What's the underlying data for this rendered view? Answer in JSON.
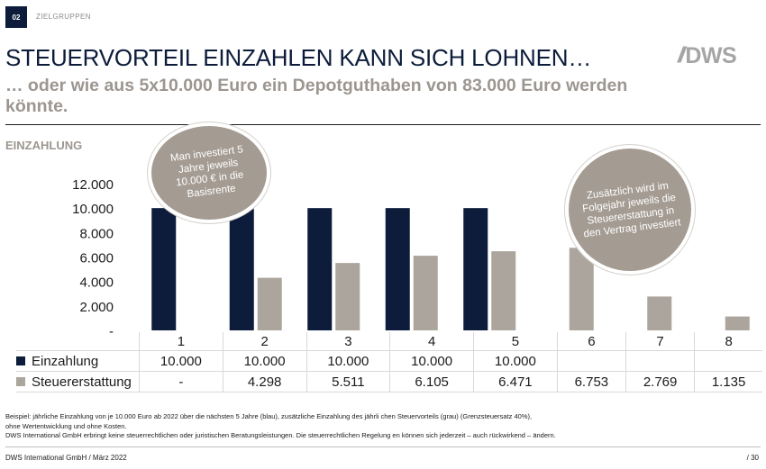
{
  "header": {
    "section_number": "02",
    "section_label": "ZIELGRUPPEN",
    "title": "STEUERVORTEIL EINZAHLEN KANN SICH LOHNEN…",
    "subtitle": "… oder wie aus 5x10.000 Euro ein Depotguthaben von 83.000 Euro werden könnte.",
    "logo_slashes": "//",
    "logo_text": "DWS"
  },
  "section_heading": "EINZAHLUNG",
  "callouts": {
    "left": "Man investiert 5 Jahre jeweils 10.000 € in die Basisrente",
    "right": "Zusätzlich wird im Folgejahr jeweils die Steuererstattung in den Vertrag investiert"
  },
  "colors": {
    "einzahlung": "#0c1c3a",
    "steuer": "#aca59e"
  },
  "chart_data": {
    "type": "bar",
    "title": "EINZAHLUNG",
    "categories": [
      "1",
      "2",
      "3",
      "4",
      "5",
      "6",
      "7",
      "8"
    ],
    "ylim": [
      0,
      12000
    ],
    "yticks": [
      0,
      2000,
      4000,
      6000,
      8000,
      10000,
      12000
    ],
    "ytick_labels": [
      "-",
      "2.000",
      "4.000",
      "6.000",
      "8.000",
      "10.000",
      "12.000"
    ],
    "series": [
      {
        "name": "Einzahlung",
        "color": "#0c1c3a",
        "values": [
          10000,
          10000,
          10000,
          10000,
          10000,
          null,
          null,
          null
        ]
      },
      {
        "name": "Steuererstattung",
        "color": "#aca59e",
        "values": [
          null,
          4298,
          5511,
          6105,
          6471,
          6753,
          2769,
          1135
        ]
      }
    ],
    "xlabel": "",
    "ylabel": "",
    "legend": "table-below"
  },
  "table": {
    "row1_label": "Einzahlung",
    "row1_values": [
      "10.000",
      "10.000",
      "10.000",
      "10.000",
      "10.000",
      "",
      "",
      ""
    ],
    "row2_label": "Steuererstattung",
    "row2_values": [
      "-",
      "4.298",
      "5.511",
      "6.105",
      "6.471",
      "6.753",
      "2.769",
      "1.135"
    ]
  },
  "footnote": {
    "line1": "Beispiel: jährliche Einzahlung von je 10.000 Euro ab 2022 über die nächsten 5 Jahre (blau), zusätzliche Einzahlung des jährli     chen Steuervorteils (grau) (Grenzsteuersatz 40%),",
    "line2": "ohne Wertentwicklung und ohne Kosten.",
    "line3": "DWS International GmbH erbringt keine steuerrechtlichen oder juristischen Beratungsleistungen. Die steuerrechtlichen Regelung     en können sich jederzeit – auch rückwirkend – ändern."
  },
  "footer": {
    "left": "DWS International GmbH / März 2022",
    "right": "/ 30"
  }
}
